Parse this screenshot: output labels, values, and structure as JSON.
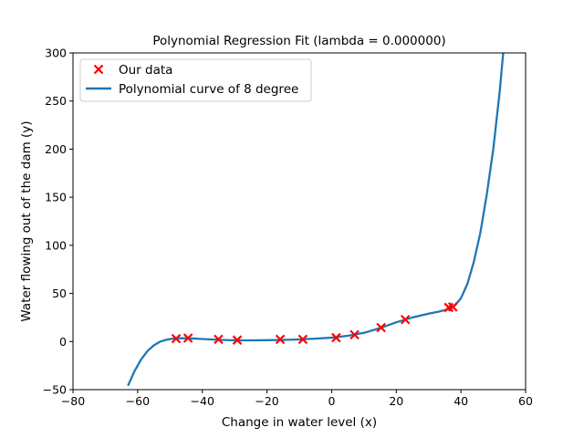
{
  "chart_data": {
    "type": "scatter",
    "title": "Polynomial Regression Fit (lambda = 0.000000)",
    "xlabel": "Change in water level (x)",
    "ylabel": "Water flowing out of the dam (y)",
    "xlim": [
      -80,
      60
    ],
    "ylim": [
      -50,
      300
    ],
    "xticks": [
      "−80",
      "−60",
      "−40",
      "−20",
      "0",
      "20",
      "40",
      "60"
    ],
    "yticks": [
      "−50",
      "0",
      "50",
      "100",
      "150",
      "200",
      "250",
      "300"
    ],
    "grid": false,
    "legend_position": "top-left",
    "series": [
      {
        "name": "Our data",
        "kind": "scatter",
        "marker": "x",
        "color": "#ff0000",
        "x": [
          -48.1,
          -44.4,
          -35.0,
          -29.2,
          -15.9,
          -8.9,
          1.4,
          7.1,
          15.3,
          22.8,
          36.2,
          37.5
        ],
        "y": [
          3.0,
          3.6,
          2.3,
          1.5,
          2.3,
          2.3,
          4.0,
          7.0,
          14.5,
          22.8,
          35.4,
          36.0
        ]
      },
      {
        "name": "Polynomial curve of 8 degree",
        "kind": "line",
        "color": "#1f77b4",
        "x": [
          -63,
          -61,
          -59,
          -57,
          -55,
          -53,
          -51,
          -49,
          -47,
          -45,
          -42,
          -38,
          -34,
          -30,
          -25,
          -20,
          -15,
          -10,
          -5,
          0,
          5,
          10,
          15,
          20,
          25,
          30,
          33,
          36,
          38,
          40,
          42,
          44,
          46,
          48,
          50,
          52,
          53.2
        ],
        "y": [
          -46,
          -31,
          -19,
          -10,
          -4,
          0,
          2,
          3,
          3.5,
          3.4,
          3,
          2.3,
          1.7,
          1.3,
          1.2,
          1.4,
          1.7,
          2.2,
          3,
          4,
          6,
          9,
          14,
          20,
          25,
          29,
          31,
          33.5,
          37,
          45,
          60,
          83,
          113,
          153,
          200,
          260,
          305
        ]
      }
    ]
  }
}
